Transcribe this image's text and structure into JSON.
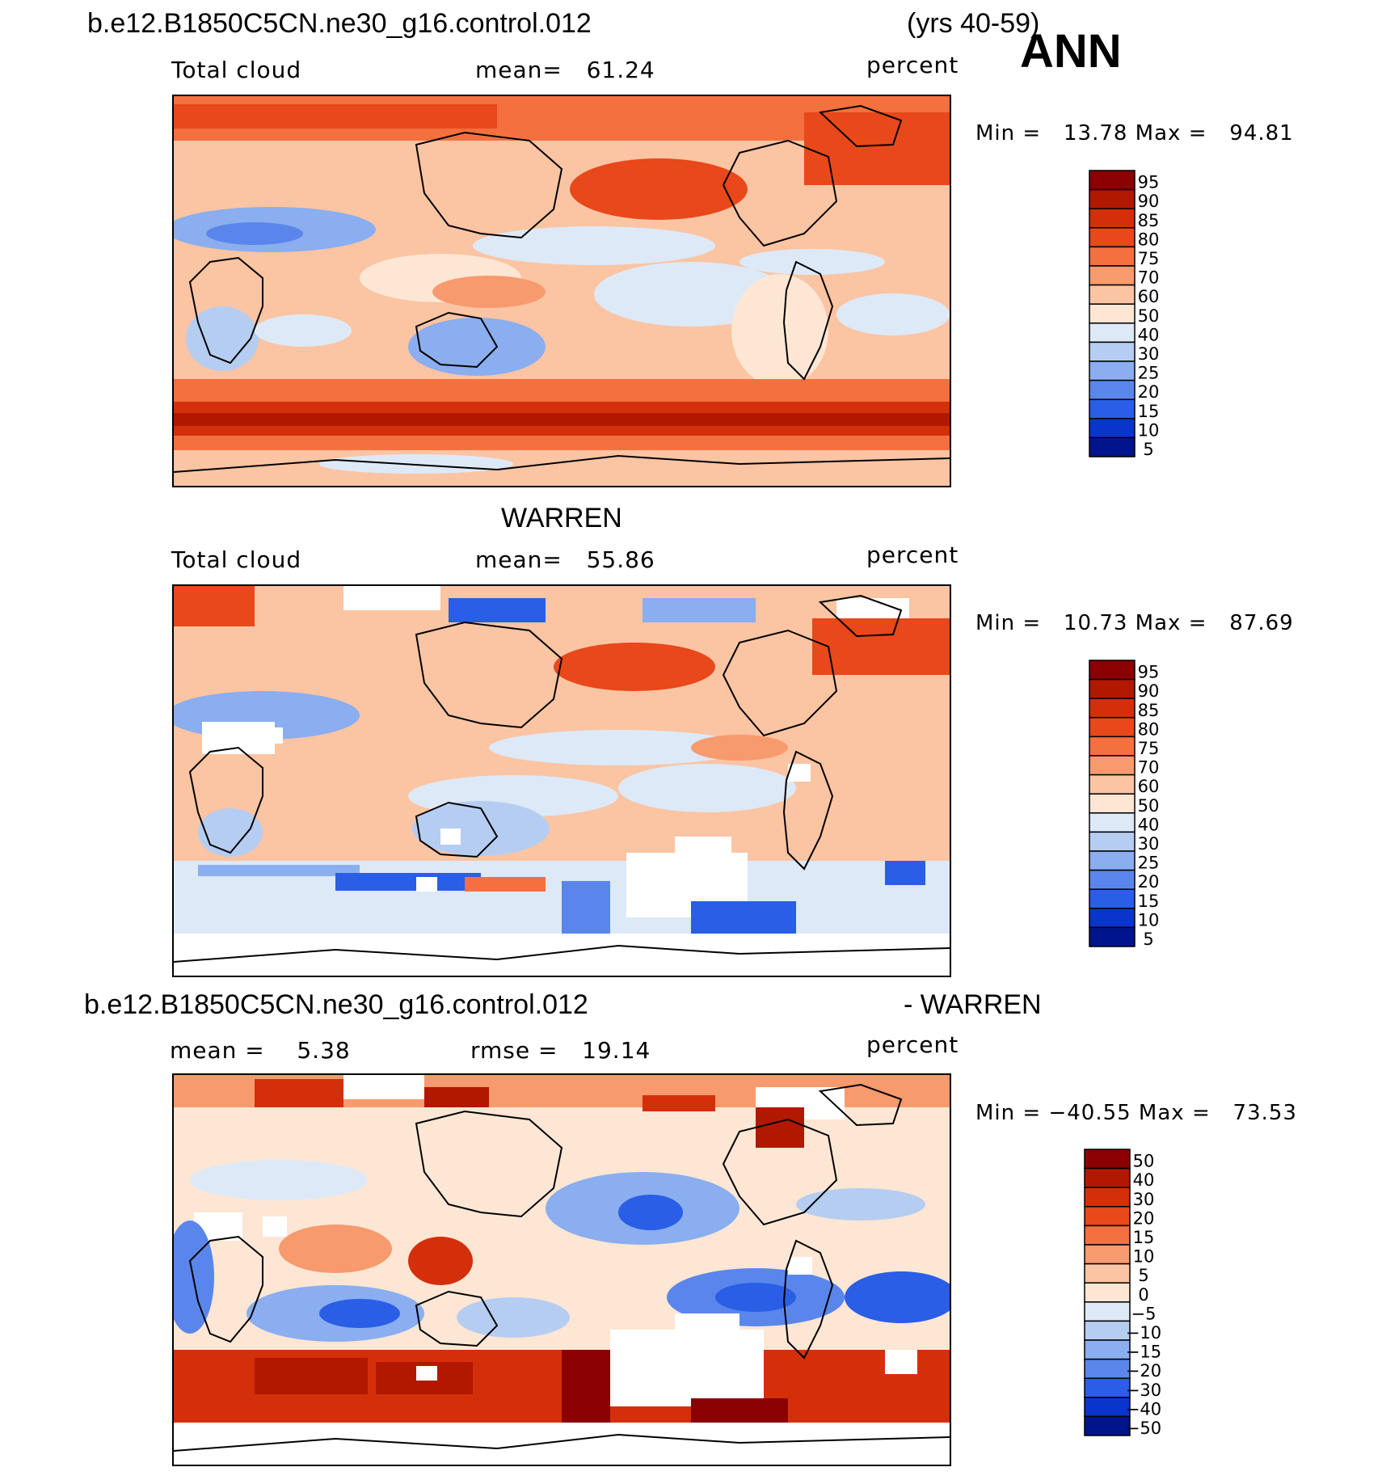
{
  "header": {
    "case_name": "b.e12.B1850C5CN.ne30_g16.control.012",
    "years": "(yrs 40-59)",
    "season": "ANN"
  },
  "panels": [
    {
      "id": "model",
      "title": "",
      "variable": "Total cloud",
      "stat_text": "mean=   61.24",
      "units": "percent",
      "minmax_text": "Min =   13.78 Max =   94.81",
      "colorbar_labels": [
        "95",
        "90",
        "85",
        "80",
        "75",
        "70",
        "60",
        "50",
        "40",
        "30",
        "25",
        "20",
        "15",
        "10",
        "5"
      ],
      "colorbar_colors": [
        "#8b0000",
        "#b21800",
        "#d42f0b",
        "#e8481a",
        "#f4703e",
        "#f79a6d",
        "#fbc4a3",
        "#fde6d4",
        "#dde9f7",
        "#b6cdf2",
        "#8aaeef",
        "#5a86ec",
        "#2a5ee6",
        "#0a35cc",
        "#00148c"
      ]
    },
    {
      "id": "obs",
      "title": "WARREN",
      "variable": "Total cloud",
      "stat_text": "mean=   55.86",
      "units": "percent",
      "minmax_text": "Min =   10.73 Max =   87.69",
      "colorbar_labels": [
        "95",
        "90",
        "85",
        "80",
        "75",
        "70",
        "60",
        "50",
        "40",
        "30",
        "25",
        "20",
        "15",
        "10",
        "5"
      ],
      "colorbar_colors": [
        "#8b0000",
        "#b21800",
        "#d42f0b",
        "#e8481a",
        "#f4703e",
        "#f79a6d",
        "#fbc4a3",
        "#fde6d4",
        "#dde9f7",
        "#b6cdf2",
        "#8aaeef",
        "#5a86ec",
        "#2a5ee6",
        "#0a35cc",
        "#00148c"
      ]
    },
    {
      "id": "diff",
      "title_left": "b.e12.B1850C5CN.ne30_g16.control.012",
      "title_right": "- WARREN",
      "variable": "mean =    5.38",
      "stat_text": "rmse =   19.14",
      "units": "percent",
      "minmax_text": "Min = −40.55 Max =   73.53",
      "colorbar_labels": [
        "50",
        "40",
        "30",
        "20",
        "15",
        "10",
        "5",
        "0",
        "−5",
        "−10",
        "−15",
        "−20",
        "−30",
        "−40",
        "−50"
      ],
      "colorbar_colors": [
        "#8b0000",
        "#b21800",
        "#d42f0b",
        "#e8481a",
        "#f4703e",
        "#f79a6d",
        "#fbc4a3",
        "#fde6d4",
        "#dde9f7",
        "#b6cdf2",
        "#8aaeef",
        "#5a86ec",
        "#2a5ee6",
        "#0a35cc",
        "#00148c"
      ]
    }
  ]
}
